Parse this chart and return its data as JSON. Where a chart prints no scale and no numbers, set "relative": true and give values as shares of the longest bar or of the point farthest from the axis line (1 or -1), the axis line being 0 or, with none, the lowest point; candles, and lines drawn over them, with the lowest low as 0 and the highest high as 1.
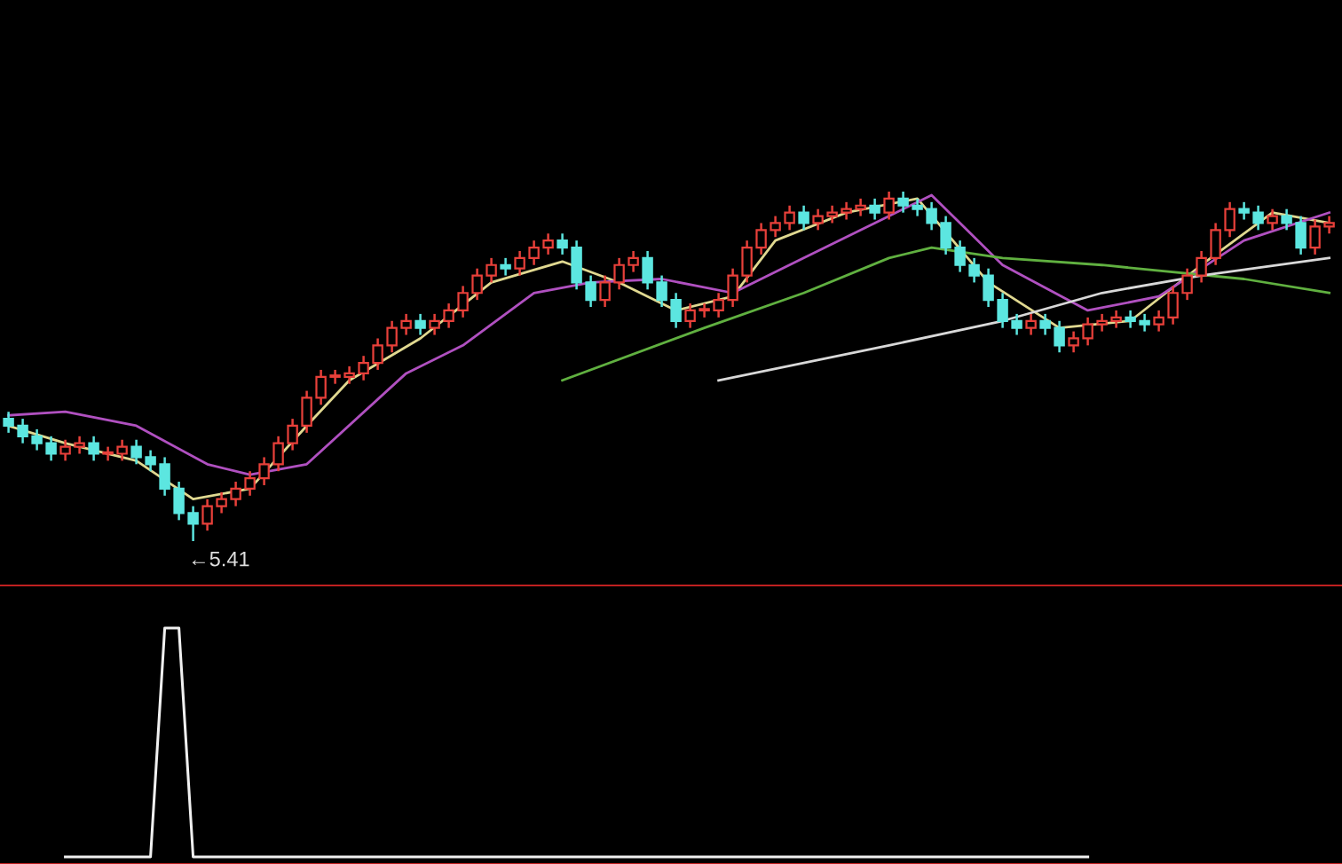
{
  "chart_data": [
    {
      "type": "candlestick",
      "relative": true,
      "categories": [
        null,
        null,
        null,
        null,
        null,
        null,
        null,
        null,
        null,
        null,
        null,
        null,
        null,
        null,
        null,
        null,
        null,
        null,
        null,
        null,
        null,
        null,
        null,
        null,
        null,
        null,
        null,
        null,
        null,
        null,
        null,
        null,
        null,
        null,
        null,
        null,
        null,
        null,
        null,
        null,
        null,
        null,
        null,
        null,
        null,
        null,
        null,
        null,
        null,
        null,
        null,
        null,
        null,
        null,
        null,
        null,
        null,
        null,
        null,
        null,
        null,
        null,
        null,
        null,
        null,
        null,
        null,
        null,
        null,
        null,
        null,
        null,
        null,
        null,
        null,
        null,
        null,
        null,
        null,
        null,
        null,
        null,
        null,
        null,
        null,
        null,
        null,
        null,
        null,
        null,
        null,
        null,
        null,
        null
      ],
      "ohlc": [
        [
          0.35,
          0.37,
          0.31,
          0.33
        ],
        [
          0.33,
          0.35,
          0.28,
          0.3
        ],
        [
          0.3,
          0.32,
          0.26,
          0.28
        ],
        [
          0.28,
          0.3,
          0.23,
          0.25
        ],
        [
          0.25,
          0.29,
          0.23,
          0.27
        ],
        [
          0.27,
          0.3,
          0.25,
          0.28
        ],
        [
          0.28,
          0.3,
          0.23,
          0.25
        ],
        [
          0.25,
          0.27,
          0.23,
          0.25
        ],
        [
          0.25,
          0.29,
          0.23,
          0.27
        ],
        [
          0.27,
          0.29,
          0.22,
          0.24
        ],
        [
          0.24,
          0.26,
          0.2,
          0.22
        ],
        [
          0.22,
          0.24,
          0.13,
          0.15
        ],
        [
          0.15,
          0.17,
          0.06,
          0.08
        ],
        [
          0.08,
          0.1,
          0,
          0.05
        ],
        [
          0.05,
          0.12,
          0.03,
          0.1
        ],
        [
          0.1,
          0.14,
          0.08,
          0.12
        ],
        [
          0.12,
          0.17,
          0.1,
          0.15
        ],
        [
          0.15,
          0.2,
          0.13,
          0.18
        ],
        [
          0.18,
          0.24,
          0.16,
          0.22
        ],
        [
          0.22,
          0.3,
          0.2,
          0.28
        ],
        [
          0.28,
          0.35,
          0.26,
          0.33
        ],
        [
          0.33,
          0.43,
          0.31,
          0.41
        ],
        [
          0.41,
          0.49,
          0.39,
          0.47
        ],
        [
          0.47,
          0.49,
          0.45,
          0.47
        ],
        [
          0.47,
          0.5,
          0.45,
          0.48
        ],
        [
          0.48,
          0.53,
          0.46,
          0.51
        ],
        [
          0.51,
          0.58,
          0.49,
          0.56
        ],
        [
          0.56,
          0.63,
          0.54,
          0.61
        ],
        [
          0.61,
          0.65,
          0.59,
          0.63
        ],
        [
          0.63,
          0.65,
          0.59,
          0.61
        ],
        [
          0.61,
          0.65,
          0.59,
          0.63
        ],
        [
          0.63,
          0.68,
          0.61,
          0.66
        ],
        [
          0.66,
          0.73,
          0.64,
          0.71
        ],
        [
          0.71,
          0.78,
          0.69,
          0.76
        ],
        [
          0.76,
          0.81,
          0.74,
          0.79
        ],
        [
          0.79,
          0.81,
          0.76,
          0.78
        ],
        [
          0.78,
          0.83,
          0.76,
          0.81
        ],
        [
          0.81,
          0.86,
          0.79,
          0.84
        ],
        [
          0.84,
          0.88,
          0.82,
          0.86
        ],
        [
          0.86,
          0.88,
          0.82,
          0.84
        ],
        [
          0.84,
          0.86,
          0.72,
          0.74
        ],
        [
          0.74,
          0.76,
          0.67,
          0.69
        ],
        [
          0.69,
          0.76,
          0.67,
          0.74
        ],
        [
          0.74,
          0.81,
          0.72,
          0.79
        ],
        [
          0.79,
          0.83,
          0.77,
          0.81
        ],
        [
          0.81,
          0.83,
          0.72,
          0.74
        ],
        [
          0.74,
          0.76,
          0.67,
          0.69
        ],
        [
          0.69,
          0.71,
          0.61,
          0.63
        ],
        [
          0.63,
          0.68,
          0.61,
          0.66
        ],
        [
          0.66,
          0.68,
          0.64,
          0.66
        ],
        [
          0.66,
          0.71,
          0.64,
          0.69
        ],
        [
          0.69,
          0.78,
          0.67,
          0.76
        ],
        [
          0.76,
          0.86,
          0.74,
          0.84
        ],
        [
          0.84,
          0.91,
          0.82,
          0.89
        ],
        [
          0.89,
          0.93,
          0.87,
          0.91
        ],
        [
          0.91,
          0.96,
          0.89,
          0.94
        ],
        [
          0.94,
          0.96,
          0.89,
          0.91
        ],
        [
          0.91,
          0.95,
          0.89,
          0.93
        ],
        [
          0.93,
          0.96,
          0.91,
          0.94
        ],
        [
          0.94,
          0.97,
          0.92,
          0.95
        ],
        [
          0.95,
          0.98,
          0.93,
          0.96
        ],
        [
          0.96,
          0.98,
          0.92,
          0.94
        ],
        [
          0.94,
          1.0,
          0.92,
          0.98
        ],
        [
          0.98,
          1.0,
          0.94,
          0.96
        ],
        [
          0.96,
          0.98,
          0.93,
          0.95
        ],
        [
          0.95,
          0.97,
          0.89,
          0.91
        ],
        [
          0.91,
          0.93,
          0.82,
          0.84
        ],
        [
          0.84,
          0.86,
          0.77,
          0.79
        ],
        [
          0.79,
          0.81,
          0.74,
          0.76
        ],
        [
          0.76,
          0.78,
          0.67,
          0.69
        ],
        [
          0.69,
          0.71,
          0.61,
          0.63
        ],
        [
          0.63,
          0.65,
          0.59,
          0.61
        ],
        [
          0.61,
          0.65,
          0.59,
          0.63
        ],
        [
          0.63,
          0.65,
          0.59,
          0.61
        ],
        [
          0.61,
          0.63,
          0.54,
          0.56
        ],
        [
          0.56,
          0.6,
          0.54,
          0.58
        ],
        [
          0.58,
          0.64,
          0.56,
          0.62
        ],
        [
          0.62,
          0.65,
          0.6,
          0.63
        ],
        [
          0.63,
          0.66,
          0.61,
          0.64
        ],
        [
          0.64,
          0.66,
          0.61,
          0.63
        ],
        [
          0.63,
          0.65,
          0.6,
          0.62
        ],
        [
          0.62,
          0.66,
          0.6,
          0.64
        ],
        [
          0.64,
          0.73,
          0.62,
          0.71
        ],
        [
          0.71,
          0.78,
          0.69,
          0.76
        ],
        [
          0.76,
          0.83,
          0.74,
          0.81
        ],
        [
          0.81,
          0.91,
          0.79,
          0.89
        ],
        [
          0.89,
          0.97,
          0.87,
          0.95
        ],
        [
          0.95,
          0.97,
          0.92,
          0.94
        ],
        [
          0.94,
          0.96,
          0.89,
          0.91
        ],
        [
          0.91,
          0.95,
          0.89,
          0.93
        ],
        [
          0.93,
          0.95,
          0.89,
          0.91
        ],
        [
          0.91,
          0.93,
          0.82,
          0.84
        ],
        [
          0.84,
          0.92,
          0.82,
          0.9
        ],
        [
          0.9,
          0.93,
          0.88,
          0.91
        ]
      ],
      "colors": [
        "#5ce6e0",
        "#5ce6e0",
        "#5ce6e0",
        "#5ce6e0",
        "#e8403a",
        "#e8403a",
        "#5ce6e0",
        "#e8403a",
        "#e8403a",
        "#5ce6e0",
        "#5ce6e0",
        "#5ce6e0",
        "#5ce6e0",
        "#5ce6e0",
        "#e8403a",
        "#e8403a",
        "#e8403a",
        "#e8403a",
        "#e8403a",
        "#e8403a",
        "#e8403a",
        "#e8403a",
        "#e8403a",
        "#e8403a",
        "#e8403a",
        "#e8403a",
        "#e8403a",
        "#e8403a",
        "#e8403a",
        "#5ce6e0",
        "#e8403a",
        "#e8403a",
        "#e8403a",
        "#e8403a",
        "#e8403a",
        "#5ce6e0",
        "#e8403a",
        "#e8403a",
        "#e8403a",
        "#5ce6e0",
        "#5ce6e0",
        "#5ce6e0",
        "#e8403a",
        "#e8403a",
        "#e8403a",
        "#5ce6e0",
        "#5ce6e0",
        "#5ce6e0",
        "#e8403a",
        "#e8403a",
        "#e8403a",
        "#e8403a",
        "#e8403a",
        "#e8403a",
        "#e8403a",
        "#e8403a",
        "#5ce6e0",
        "#e8403a",
        "#e8403a",
        "#e8403a",
        "#e8403a",
        "#5ce6e0",
        "#e8403a",
        "#5ce6e0",
        "#5ce6e0",
        "#5ce6e0",
        "#5ce6e0",
        "#5ce6e0",
        "#5ce6e0",
        "#5ce6e0",
        "#5ce6e0",
        "#5ce6e0",
        "#e8403a",
        "#5ce6e0",
        "#5ce6e0",
        "#e8403a",
        "#e8403a",
        "#e8403a",
        "#e8403a",
        "#5ce6e0",
        "#5ce6e0",
        "#e8403a",
        "#e8403a",
        "#e8403a",
        "#e8403a",
        "#e8403a",
        "#e8403a",
        "#5ce6e0",
        "#5ce6e0",
        "#e8403a",
        "#5ce6e0",
        "#5ce6e0",
        "#e8403a",
        "#e8403a"
      ],
      "series": [
        {
          "type": "line",
          "color": "#e0d890",
          "values": [
            0.33,
            null,
            null,
            null,
            0.28,
            null,
            null,
            null,
            null,
            0.23,
            null,
            null,
            null,
            0.12,
            null,
            null,
            null,
            0.15,
            null,
            null,
            null,
            0.33,
            null,
            null,
            0.46,
            null,
            null,
            null,
            null,
            0.58,
            null,
            null,
            null,
            null,
            0.74,
            null,
            null,
            null,
            null,
            0.8,
            null,
            null,
            null,
            0.74,
            null,
            null,
            null,
            0.66,
            null,
            null,
            null,
            0.7,
            null,
            null,
            0.86,
            null,
            null,
            null,
            null,
            0.94,
            null,
            null,
            null,
            null,
            0.98,
            null,
            null,
            null,
            null,
            0.74,
            null,
            null,
            null,
            null,
            0.61,
            null,
            null,
            null,
            null,
            0.63,
            null,
            null,
            null,
            null,
            0.79,
            null,
            null,
            null,
            null,
            0.94,
            null,
            null,
            null,
            0.91
          ]
        },
        {
          "type": "line",
          "color": "#b050c0",
          "values": [
            0.36,
            null,
            null,
            null,
            0.37,
            null,
            null,
            null,
            null,
            0.33,
            null,
            null,
            null,
            null,
            0.22,
            null,
            null,
            0.19,
            null,
            null,
            null,
            0.22,
            null,
            null,
            null,
            null,
            null,
            null,
            0.48,
            null,
            null,
            null,
            0.56,
            null,
            null,
            null,
            null,
            0.71,
            null,
            null,
            null,
            0.74,
            null,
            null,
            null,
            null,
            0.75,
            null,
            null,
            null,
            null,
            0.71,
            null,
            null,
            null,
            null,
            0.81,
            null,
            null,
            null,
            null,
            0.91,
            null,
            null,
            null,
            0.99,
            null,
            null,
            null,
            null,
            0.79,
            null,
            null,
            null,
            null,
            null,
            0.66,
            null,
            null,
            null,
            null,
            0.7,
            null,
            null,
            null,
            null,
            null,
            0.86,
            null,
            null,
            null,
            null,
            null,
            0.94
          ]
        },
        {
          "type": "line",
          "color": "#60b040",
          "values": [
            null,
            null,
            null,
            null,
            null,
            null,
            null,
            null,
            null,
            null,
            null,
            null,
            null,
            null,
            null,
            null,
            null,
            null,
            null,
            null,
            null,
            null,
            null,
            null,
            null,
            null,
            null,
            null,
            null,
            null,
            null,
            null,
            null,
            null,
            null,
            null,
            null,
            null,
            null,
            0.46,
            null,
            null,
            null,
            null,
            null,
            null,
            null,
            null,
            null,
            0.61,
            null,
            null,
            null,
            null,
            null,
            null,
            0.71,
            null,
            null,
            null,
            null,
            null,
            0.81,
            null,
            null,
            0.84,
            null,
            null,
            null,
            null,
            0.81,
            null,
            null,
            null,
            null,
            null,
            null,
            0.79,
            null,
            null,
            null,
            null,
            null,
            null,
            null,
            null,
            null,
            0.75,
            null,
            null,
            null,
            null,
            null,
            0.71
          ]
        },
        {
          "type": "line",
          "color": "#d8d8d8",
          "values": [
            null,
            null,
            null,
            null,
            null,
            null,
            null,
            null,
            null,
            null,
            null,
            null,
            null,
            null,
            null,
            null,
            null,
            null,
            null,
            null,
            null,
            null,
            null,
            null,
            null,
            null,
            null,
            null,
            null,
            null,
            null,
            null,
            null,
            null,
            null,
            null,
            null,
            null,
            null,
            null,
            null,
            null,
            null,
            null,
            null,
            null,
            null,
            null,
            null,
            null,
            0.46,
            null,
            null,
            null,
            null,
            null,
            null,
            null,
            null,
            null,
            null,
            null,
            0.56,
            null,
            null,
            null,
            null,
            null,
            null,
            null,
            0.63,
            null,
            null,
            null,
            null,
            null,
            null,
            0.71,
            null,
            null,
            null,
            null,
            null,
            null,
            0.76,
            null,
            null,
            null,
            null,
            null,
            null,
            null,
            null,
            0.81
          ]
        }
      ],
      "annotations": [
        "←5.41"
      ]
    },
    {
      "type": "line",
      "relative": true,
      "categories": [
        null,
        null,
        null,
        null,
        null,
        null,
        null,
        null,
        null,
        null,
        null,
        null,
        null,
        null,
        null,
        null,
        null,
        null,
        null,
        null,
        null,
        null,
        null,
        null,
        null,
        null,
        null,
        null,
        null,
        null,
        null,
        null,
        null,
        null,
        null,
        null,
        null,
        null,
        null,
        null,
        null,
        null,
        null,
        null,
        null,
        null,
        null,
        null,
        null,
        null,
        null,
        null,
        null,
        null,
        null,
        null,
        null,
        null,
        null,
        null,
        null,
        null,
        null,
        null,
        null,
        null,
        null,
        null,
        null,
        null,
        null,
        null,
        null,
        null,
        null,
        null,
        null,
        null,
        null,
        null,
        null,
        null,
        null,
        null,
        null,
        null,
        null,
        null,
        null,
        null,
        null,
        null,
        null,
        null
      ],
      "series": [
        {
          "color": "#f0f0f0",
          "values": [
            null,
            null,
            null,
            null,
            0,
            0,
            0,
            0,
            0,
            0,
            0,
            1,
            1,
            0,
            0,
            0,
            0,
            0,
            0,
            0,
            0,
            0,
            0,
            0,
            0,
            0,
            0,
            0,
            0,
            0,
            0,
            0,
            0,
            0,
            0,
            0,
            0,
            0,
            0,
            0,
            0,
            0,
            0,
            0,
            0,
            0,
            0,
            0,
            0,
            0,
            0,
            0,
            0,
            0,
            0,
            0,
            0,
            0,
            0,
            0,
            0,
            0,
            0,
            0,
            0,
            0,
            0,
            0,
            0,
            0,
            0,
            0,
            0,
            0,
            0,
            0,
            0,
            null,
            null,
            null,
            null,
            null,
            null,
            null,
            null,
            null,
            null,
            null,
            null,
            null,
            null,
            null,
            null,
            null
          ]
        }
      ]
    }
  ]
}
